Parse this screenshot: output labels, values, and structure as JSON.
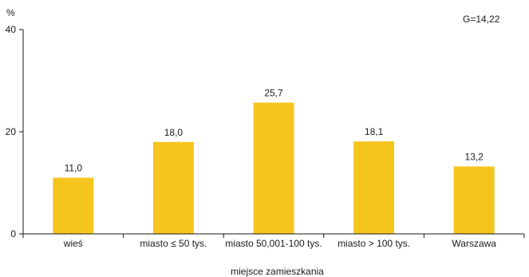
{
  "chart_data": {
    "type": "bar",
    "ylabel": "%",
    "xlabel": "miejsce zamieszkania",
    "annotation": "G=14,22",
    "categories": [
      "wieś",
      "miasto ≤ 50 tys.",
      "miasto 50,001-100 tys.",
      "miasto > 100 tys.",
      "Warszawa"
    ],
    "values": [
      11.0,
      18.0,
      25.7,
      18.1,
      13.2
    ],
    "value_labels": [
      "11,0",
      "18,0",
      "25,7",
      "18,1",
      "13,2"
    ],
    "ylim": [
      0,
      40
    ],
    "yticks": [
      0,
      20,
      40
    ],
    "ytick_labels": [
      "0",
      "20",
      "40"
    ],
    "bar_color": "#F6C51D",
    "grid": false,
    "legend": "none"
  }
}
